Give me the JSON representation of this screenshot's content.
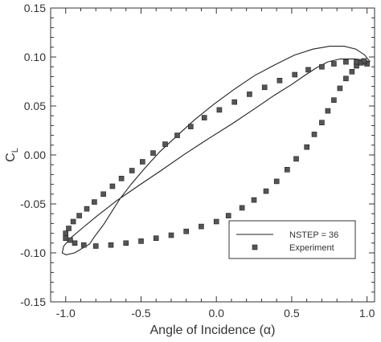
{
  "chart_data": {
    "type": "scatter",
    "xlabel": "Angle of Incidence (α)",
    "ylabel": "C_L",
    "ylabel_main": "C",
    "ylabel_sub": "L",
    "xlim": [
      -1.1,
      1.05
    ],
    "ylim": [
      -0.15,
      0.15
    ],
    "x_ticks": [
      -1.0,
      -0.5,
      0.0,
      0.5,
      1.0
    ],
    "x_tick_labels": [
      "-1.0",
      "-0.5",
      "0.0",
      "0.5",
      "1.0"
    ],
    "y_ticks": [
      -0.15,
      -0.1,
      -0.05,
      0.0,
      0.05,
      0.1,
      0.15
    ],
    "y_tick_labels": [
      "-0.15",
      "-0.10",
      "-0.05",
      "0.00",
      "0.05",
      "0.10",
      "0.15"
    ],
    "grid": false,
    "legend_placement": "bottom-right",
    "series": [
      {
        "name": "NSTEP = 36",
        "kind": "line",
        "color": "#222222",
        "points": [
          [
            1.02,
            0.095
          ],
          [
            0.985,
            0.102
          ],
          [
            0.927,
            0.108
          ],
          [
            0.848,
            0.111
          ],
          [
            0.752,
            0.111
          ],
          [
            0.641,
            0.108
          ],
          [
            0.518,
            0.102
          ],
          [
            0.388,
            0.092
          ],
          [
            0.253,
            0.081
          ],
          [
            0.118,
            0.067
          ],
          [
            -0.015,
            0.052
          ],
          [
            -0.144,
            0.036
          ],
          [
            -0.265,
            0.019
          ],
          [
            -0.377,
            0.003
          ],
          [
            -0.478,
            -0.014
          ],
          [
            -0.566,
            -0.03
          ],
          [
            -0.641,
            -0.045
          ],
          [
            -0.748,
            -0.071
          ],
          [
            -0.807,
            -0.083
          ],
          [
            -0.842,
            -0.091
          ],
          [
            -0.941,
            -0.1
          ],
          [
            -0.998,
            -0.102
          ],
          [
            -1.023,
            -0.1
          ],
          [
            -1.013,
            -0.093
          ],
          [
            -0.968,
            -0.085
          ],
          [
            -0.892,
            -0.075
          ],
          [
            -0.789,
            -0.062
          ],
          [
            -0.664,
            -0.047
          ],
          [
            -0.522,
            -0.032
          ],
          [
            -0.368,
            -0.016
          ],
          [
            -0.209,
            0.001
          ],
          [
            -0.049,
            0.017
          ],
          [
            0.106,
            0.032
          ],
          [
            0.252,
            0.047
          ],
          [
            0.385,
            0.061
          ],
          [
            0.5,
            0.072
          ],
          [
            0.594,
            0.082
          ],
          [
            0.665,
            0.089
          ],
          [
            0.739,
            0.095
          ],
          [
            0.823,
            0.098
          ],
          [
            0.917,
            0.098
          ],
          [
            0.98,
            0.097
          ],
          [
            1.02,
            0.095
          ]
        ]
      },
      {
        "name": "Experiment",
        "kind": "scatter",
        "color": "#555555",
        "points": [
          [
            1.0,
            0.093
          ],
          [
            0.98,
            0.095
          ],
          [
            0.96,
            0.094
          ],
          [
            0.93,
            0.091
          ],
          [
            0.9,
            0.085
          ],
          [
            0.86,
            0.078
          ],
          [
            0.82,
            0.068
          ],
          [
            0.78,
            0.056
          ],
          [
            0.74,
            0.045
          ],
          [
            0.7,
            0.033
          ],
          [
            0.65,
            0.021
          ],
          [
            0.6,
            0.008
          ],
          [
            0.53,
            -0.004
          ],
          [
            0.47,
            -0.015
          ],
          [
            0.4,
            -0.027
          ],
          [
            0.33,
            -0.037
          ],
          [
            0.25,
            -0.046
          ],
          [
            0.17,
            -0.054
          ],
          [
            0.08,
            -0.062
          ],
          [
            0.0,
            -0.068
          ],
          [
            -0.1,
            -0.073
          ],
          [
            -0.2,
            -0.078
          ],
          [
            -0.3,
            -0.082
          ],
          [
            -0.4,
            -0.085
          ],
          [
            -0.5,
            -0.088
          ],
          [
            -0.6,
            -0.09
          ],
          [
            -0.7,
            -0.092
          ],
          [
            -0.8,
            -0.093
          ],
          [
            -0.88,
            -0.092
          ],
          [
            -0.94,
            -0.09
          ],
          [
            -0.97,
            -0.087
          ],
          [
            -1.0,
            -0.085
          ],
          [
            -1.0,
            -0.08
          ],
          [
            -0.98,
            -0.075
          ],
          [
            -0.95,
            -0.068
          ],
          [
            -0.91,
            -0.062
          ],
          [
            -0.86,
            -0.055
          ],
          [
            -0.81,
            -0.048
          ],
          [
            -0.75,
            -0.04
          ],
          [
            -0.69,
            -0.032
          ],
          [
            -0.63,
            -0.024
          ],
          [
            -0.56,
            -0.016
          ],
          [
            -0.49,
            -0.007
          ],
          [
            -0.42,
            0.002
          ],
          [
            -0.34,
            0.011
          ],
          [
            -0.26,
            0.02
          ],
          [
            -0.17,
            0.029
          ],
          [
            -0.08,
            0.038
          ],
          [
            0.02,
            0.046
          ],
          [
            0.12,
            0.054
          ],
          [
            0.22,
            0.062
          ],
          [
            0.32,
            0.069
          ],
          [
            0.42,
            0.076
          ],
          [
            0.52,
            0.082
          ],
          [
            0.61,
            0.087
          ],
          [
            0.7,
            0.09
          ],
          [
            0.78,
            0.093
          ],
          [
            0.86,
            0.095
          ],
          [
            0.93,
            0.095
          ],
          [
            0.98,
            0.096
          ]
        ]
      }
    ]
  }
}
